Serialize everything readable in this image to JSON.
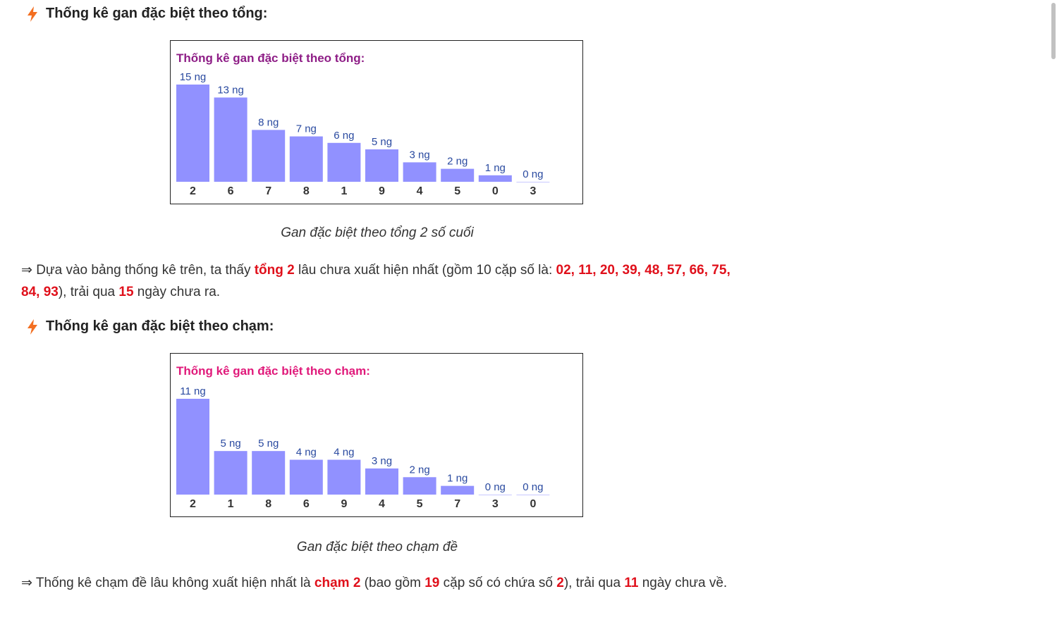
{
  "colors": {
    "accent": "#f36f21",
    "bar": "#9191ff",
    "bar_label": "#2a4aa0",
    "highlight": "#e0101b",
    "chart1_title": "#8e1d86",
    "chart2_title": "#e0197a"
  },
  "icons": {
    "heading_icon": "lightning-bolt-icon"
  },
  "section1": {
    "heading": "Thống kê gan đặc biệt theo tổng:",
    "caption": "Gan đặc biệt theo tổng 2 số cuối",
    "para": {
      "t1": "⇒ Dựa vào bảng thống kê trên, ta thấy ",
      "h1": "tổng 2",
      "t2": " lâu chưa xuất hiện nhất (gồm 10 cặp số là: ",
      "h2": "02, 11, 20, 39, 48, 57, 66, 75, 84, 93",
      "t3": "), trải qua ",
      "h3": "15",
      "t4": " ngày chưa ra."
    }
  },
  "section2": {
    "heading": "Thống kê gan đặc biệt theo chạm:",
    "caption": "Gan đặc biệt theo chạm đề",
    "para": {
      "t1": "⇒ Thống kê chạm đề lâu không xuất hiện nhất là ",
      "h1": "chạm 2",
      "t2": " (bao gồm ",
      "h2": "19",
      "t3": " cặp số có chứa số ",
      "h3": "2",
      "t4": "), trải qua ",
      "h4": "11",
      "t5": " ngày chưa về."
    }
  },
  "chart_data": [
    {
      "type": "bar",
      "title": "Thống kê gan đặc biệt theo tổng:",
      "unit": "ng",
      "categories": [
        "2",
        "6",
        "7",
        "8",
        "1",
        "9",
        "4",
        "5",
        "0",
        "3"
      ],
      "values": [
        15,
        13,
        8,
        7,
        6,
        5,
        3,
        2,
        1,
        0
      ],
      "labels": [
        "15 ng",
        "13 ng",
        "8 ng",
        "7 ng",
        "6 ng",
        "5 ng",
        "3 ng",
        "2 ng",
        "1 ng",
        "0 ng"
      ],
      "ylim": [
        0,
        15
      ]
    },
    {
      "type": "bar",
      "title": "Thống kê gan đặc biệt theo chạm:",
      "unit": "ng",
      "categories": [
        "2",
        "1",
        "8",
        "6",
        "9",
        "4",
        "5",
        "7",
        "3",
        "0"
      ],
      "values": [
        11,
        5,
        5,
        4,
        4,
        3,
        2,
        1,
        0,
        0
      ],
      "labels": [
        "11 ng",
        "5 ng",
        "5 ng",
        "4 ng",
        "4 ng",
        "3 ng",
        "2 ng",
        "1 ng",
        "0 ng",
        "0 ng"
      ],
      "ylim": [
        0,
        11
      ]
    }
  ]
}
